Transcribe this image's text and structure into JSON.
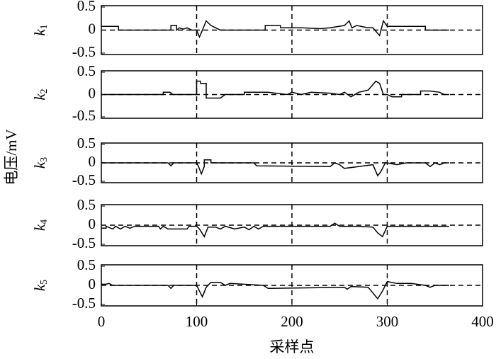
{
  "ylabel": "电压/mV",
  "xlabel": "采样点",
  "chart_data": [
    {
      "type": "line",
      "ylabel": [
        "k",
        "1"
      ],
      "xlim": [
        0,
        400
      ],
      "ylim": [
        -0.5,
        0.5
      ],
      "yticks": [
        0.5,
        0,
        -0.5
      ],
      "hline": 0,
      "vlines": [
        100,
        200,
        300
      ],
      "series": [
        {
          "color": "#000000",
          "x": [
            0,
            18,
            18,
            73,
            73,
            79,
            79,
            82,
            86,
            90,
            95,
            100,
            103,
            106,
            110,
            115,
            120,
            125,
            172,
            172,
            188,
            188,
            210,
            230,
            240,
            255,
            260,
            263,
            268,
            280,
            285,
            292,
            296,
            300,
            340,
            340,
            365
          ],
          "values": [
            0.08,
            0.08,
            0,
            0,
            0.1,
            0.1,
            0,
            0.05,
            0.02,
            0.05,
            0,
            0,
            -0.15,
            0,
            0.2,
            0.1,
            0.05,
            0,
            0,
            0.1,
            0.1,
            0.05,
            0.05,
            0.03,
            0.05,
            0.1,
            0.2,
            0.05,
            0.1,
            0.05,
            0.05,
            -0.12,
            0.2,
            0.08,
            0.08,
            0,
            0
          ]
        }
      ]
    },
    {
      "type": "line",
      "ylabel": [
        "k",
        "2"
      ],
      "xlim": [
        0,
        400
      ],
      "ylim": [
        -0.5,
        0.5
      ],
      "yticks": [
        0.5,
        0,
        -0.5
      ],
      "hline": 0,
      "vlines": [
        100,
        200,
        300
      ],
      "series": [
        {
          "color": "#000000",
          "x": [
            0,
            65,
            65,
            72,
            75,
            80,
            100,
            100,
            104,
            104,
            110,
            110,
            125,
            130,
            150,
            150,
            175,
            195,
            200,
            210,
            220,
            240,
            250,
            255,
            262,
            270,
            280,
            288,
            292,
            296,
            300,
            305,
            315,
            315,
            335,
            335,
            345,
            355,
            360,
            365
          ],
          "values": [
            0,
            0,
            0.05,
            0.05,
            0,
            0,
            0,
            0.3,
            0.3,
            0.25,
            0.25,
            -0.08,
            -0.08,
            0,
            0,
            0.05,
            0.05,
            0,
            0.05,
            0,
            0.05,
            0.03,
            0,
            0.05,
            -0.05,
            0.05,
            0.1,
            0.3,
            0.25,
            0,
            0,
            -0.05,
            -0.05,
            0,
            0,
            0.08,
            0.08,
            0.05,
            0,
            0
          ]
        }
      ]
    },
    {
      "type": "line",
      "ylabel": [
        "k",
        "3"
      ],
      "xlim": [
        0,
        400
      ],
      "ylim": [
        -0.5,
        0.5
      ],
      "yticks": [
        0.5,
        0,
        -0.5
      ],
      "hline": 0,
      "vlines": [
        100,
        200,
        300
      ],
      "series": [
        {
          "color": "#000000",
          "x": [
            0,
            70,
            73,
            76,
            100,
            102,
            105,
            108,
            108,
            115,
            115,
            120,
            160,
            163,
            240,
            245,
            250,
            255,
            285,
            290,
            293,
            298,
            300,
            310,
            320,
            340,
            345,
            350,
            355,
            360,
            365
          ],
          "values": [
            0,
            0,
            -0.08,
            0,
            0,
            -0.1,
            -0.3,
            -0.1,
            0.08,
            0.08,
            0,
            0,
            0,
            -0.08,
            -0.1,
            0,
            -0.05,
            -0.15,
            -0.05,
            -0.35,
            -0.25,
            0,
            0,
            -0.05,
            0,
            0,
            -0.1,
            0,
            -0.05,
            0,
            0
          ]
        }
      ]
    },
    {
      "type": "line",
      "ylabel": [
        "k",
        "4"
      ],
      "xlim": [
        0,
        400
      ],
      "ylim": [
        -0.5,
        0.5
      ],
      "yticks": [
        0.5,
        0,
        -0.5
      ],
      "hline": 0,
      "vlines": [
        100,
        200,
        300
      ],
      "series": [
        {
          "color": "#000000",
          "x": [
            0,
            5,
            5,
            12,
            15,
            20,
            25,
            30,
            35,
            60,
            62,
            65,
            70,
            75,
            90,
            92,
            100,
            103,
            108,
            112,
            120,
            125,
            130,
            140,
            150,
            155,
            160,
            165,
            170,
            200,
            240,
            245,
            250,
            270,
            285,
            290,
            295,
            300,
            310,
            365
          ],
          "values": [
            -0.08,
            -0.08,
            -0.03,
            -0.1,
            -0.03,
            -0.1,
            -0.03,
            -0.08,
            -0.03,
            -0.03,
            -0.1,
            -0.03,
            -0.1,
            -0.1,
            -0.1,
            -0.03,
            -0.03,
            -0.1,
            -0.3,
            -0.05,
            -0.05,
            -0.1,
            -0.03,
            -0.1,
            -0.05,
            -0.12,
            -0.03,
            -0.1,
            -0.03,
            -0.03,
            -0.03,
            0.05,
            -0.03,
            -0.03,
            -0.05,
            -0.2,
            -0.3,
            -0.03,
            -0.03,
            -0.03
          ]
        }
      ]
    },
    {
      "type": "line",
      "ylabel": [
        "k",
        "5"
      ],
      "xlim": [
        0,
        400
      ],
      "ylim": [
        -0.5,
        0.5
      ],
      "yticks": [
        0.5,
        0,
        -0.5
      ],
      "xticks": [
        0,
        100,
        200,
        300,
        400
      ],
      "hline": 0,
      "vlines": [
        100,
        200,
        300
      ],
      "series": [
        {
          "color": "#000000",
          "x": [
            0,
            5,
            8,
            12,
            70,
            73,
            76,
            100,
            103,
            106,
            110,
            115,
            125,
            130,
            135,
            170,
            175,
            255,
            258,
            262,
            280,
            285,
            290,
            295,
            300,
            310,
            325,
            340,
            345,
            350,
            365
          ],
          "values": [
            0.03,
            0.03,
            0.05,
            0,
            0,
            -0.08,
            0,
            0,
            -0.15,
            -0.3,
            -0.05,
            0.08,
            0.08,
            0,
            0.05,
            0,
            -0.08,
            -0.05,
            -0.1,
            -0.03,
            -0.05,
            -0.2,
            -0.35,
            -0.15,
            0.1,
            0.05,
            0.05,
            0,
            -0.05,
            0,
            0
          ]
        }
      ]
    }
  ]
}
